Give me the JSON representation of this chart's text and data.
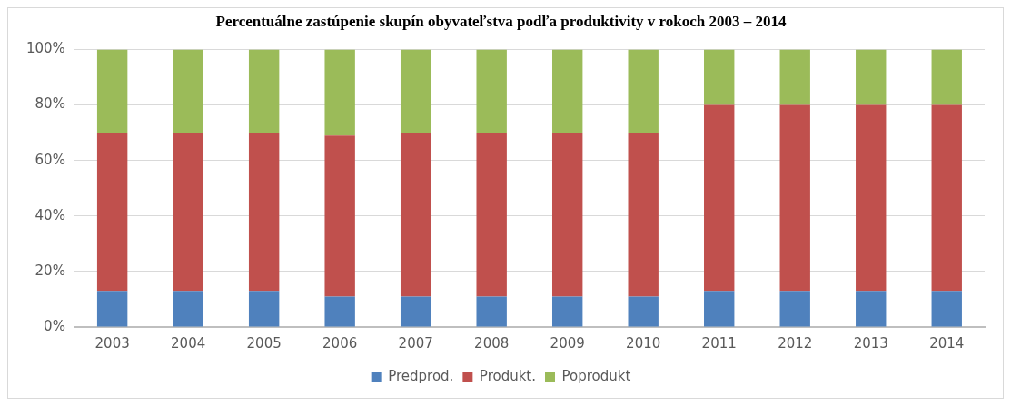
{
  "chart_data": {
    "type": "bar",
    "stacked": true,
    "title": "Percentuálne zastúpenie skupín obyvateľstva podľa produktivity v rokoch 2003 – 2014",
    "categories": [
      "2003",
      "2004",
      "2005",
      "2006",
      "2007",
      "2008",
      "2009",
      "2010",
      "2011",
      "2012",
      "2013",
      "2014"
    ],
    "series": [
      {
        "name": "Predprod.",
        "color": "#4f81bd",
        "values": [
          13,
          13,
          13,
          11,
          11,
          11,
          11,
          11,
          13,
          13,
          13,
          13
        ]
      },
      {
        "name": "Produkt.",
        "color": "#c0504d",
        "values": [
          57,
          57,
          57,
          58,
          59,
          59,
          59,
          59,
          67,
          67,
          67,
          67
        ]
      },
      {
        "name": "Poprodukt",
        "color": "#9bbb59",
        "values": [
          30,
          30,
          30,
          31,
          30,
          30,
          30,
          30,
          20,
          20,
          20,
          20
        ]
      }
    ],
    "ylim": [
      0,
      100
    ],
    "yticks": [
      {
        "value": 0,
        "label": "0%"
      },
      {
        "value": 20,
        "label": "20%"
      },
      {
        "value": 40,
        "label": "40%"
      },
      {
        "value": 60,
        "label": "60%"
      },
      {
        "value": 80,
        "label": "80%"
      },
      {
        "value": 100,
        "label": "100%"
      }
    ],
    "grid": "y",
    "legend": "bottom"
  }
}
